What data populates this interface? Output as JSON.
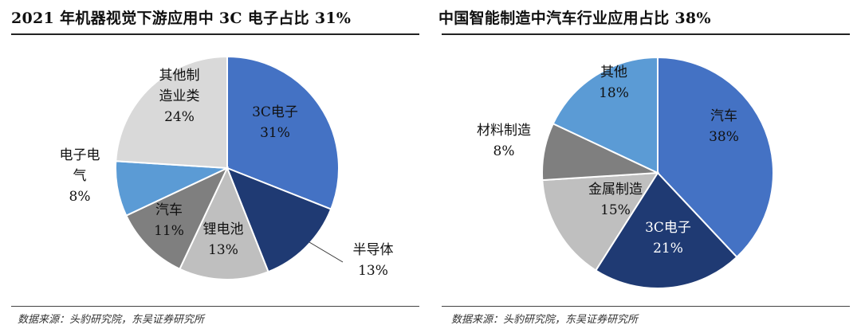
{
  "charts": [
    {
      "title": "2021 年机器视觉下游应用中 3C 电子占比 31%",
      "source": "数据来源：头豹研究院，东吴证券研究所",
      "chart_data": {
        "type": "pie",
        "title": "2021 年机器视觉下游应用中 3C 电子占比 31%",
        "slices": [
          {
            "label": "3C电子",
            "lines": [
              "3C电子"
            ],
            "value": 31,
            "value_label": "31%",
            "color": "#4472c4",
            "text_color": "#111111"
          },
          {
            "label": "半导体",
            "lines": [
              "半导体"
            ],
            "value": 13,
            "value_label": "13%",
            "color": "#1f3a73",
            "text_color": "#111111"
          },
          {
            "label": "锂电池",
            "lines": [
              "锂电池"
            ],
            "value": 13,
            "value_label": "13%",
            "color": "#bfbfbf",
            "text_color": "#111111"
          },
          {
            "label": "汽车",
            "lines": [
              "汽车"
            ],
            "value": 11,
            "value_label": "11%",
            "color": "#7f7f7f",
            "text_color": "#111111"
          },
          {
            "label": "电子电气",
            "lines": [
              "电子电",
              "气"
            ],
            "value": 8,
            "value_label": "8%",
            "color": "#5b9bd5",
            "text_color": "#111111"
          },
          {
            "label": "其他制造业类",
            "lines": [
              "其他制",
              "造业类"
            ],
            "value": 24,
            "value_label": "24%",
            "color": "#d9d9d9",
            "text_color": "#111111"
          }
        ],
        "legend": "none"
      }
    },
    {
      "title": "中国智能制造中汽车行业应用占比 38%",
      "source": "数据来源：头豹研究院，东吴证券研究所",
      "chart_data": {
        "type": "pie",
        "title": "中国智能制造中汽车行业应用占比 38%",
        "slices": [
          {
            "label": "汽车",
            "lines": [
              "汽车"
            ],
            "value": 38,
            "value_label": "38%",
            "color": "#4472c4",
            "text_color": "#111111"
          },
          {
            "label": "3C电子",
            "lines": [
              "3C电子"
            ],
            "value": 21,
            "value_label": "21%",
            "color": "#1f3a73",
            "text_color": "#ffffff"
          },
          {
            "label": "金属制造",
            "lines": [
              "金属制造"
            ],
            "value": 15,
            "value_label": "15%",
            "color": "#bfbfbf",
            "text_color": "#111111"
          },
          {
            "label": "材料制造",
            "lines": [
              "材料制造"
            ],
            "value": 8,
            "value_label": "8%",
            "color": "#7f7f7f",
            "text_color": "#111111"
          },
          {
            "label": "其他",
            "lines": [
              "其他"
            ],
            "value": 18,
            "value_label": "18%",
            "color": "#5b9bd5",
            "text_color": "#111111"
          }
        ],
        "legend": "none"
      }
    }
  ]
}
